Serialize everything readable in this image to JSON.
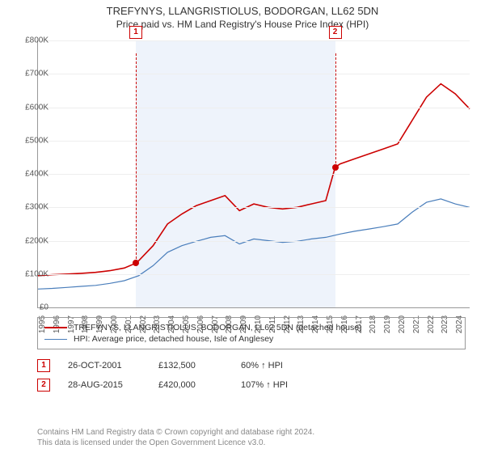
{
  "title": "TREFYNYS, LLANGRISTIOLUS, BODORGAN, LL62 5DN",
  "subtitle": "Price paid vs. HM Land Registry's House Price Index (HPI)",
  "chart": {
    "type": "line",
    "x_start_year": 1995,
    "x_end_year": 2025,
    "x_ticks": [
      1995,
      1996,
      1997,
      1998,
      1999,
      2000,
      2001,
      2002,
      2003,
      2004,
      2005,
      2006,
      2007,
      2008,
      2009,
      2010,
      2011,
      2012,
      2013,
      2014,
      2015,
      2016,
      2017,
      2018,
      2019,
      2020,
      2021,
      2022,
      2023,
      2024
    ],
    "ylim": [
      0,
      800000
    ],
    "y_ticks": [
      0,
      100000,
      200000,
      300000,
      400000,
      500000,
      600000,
      700000,
      800000
    ],
    "y_tick_labels": [
      "£0",
      "£100K",
      "£200K",
      "£300K",
      "£400K",
      "£500K",
      "£600K",
      "£700K",
      "£800K"
    ],
    "background_color": "#ffffff",
    "grid_color": "#eeeeee",
    "axis_color": "#999999",
    "shaded_band": {
      "from_year": 2001.8,
      "to_year": 2015.65,
      "color": "#eef3fb"
    },
    "title_fontsize": 13,
    "subtitle_fontsize": 12,
    "tick_fontsize": 10,
    "series": [
      {
        "name": "TREFYNYS, LLANGRISTIOLUS, BODORGAN, LL62 5DN (detached house)",
        "color": "#cc0000",
        "line_width": 1.6,
        "points": [
          [
            1995,
            95000
          ],
          [
            1996,
            98000
          ],
          [
            1997,
            100000
          ],
          [
            1998,
            102000
          ],
          [
            1999,
            105000
          ],
          [
            2000,
            110000
          ],
          [
            2001,
            118000
          ],
          [
            2001.8,
            132500
          ],
          [
            2002,
            140000
          ],
          [
            2003,
            185000
          ],
          [
            2004,
            250000
          ],
          [
            2005,
            280000
          ],
          [
            2006,
            305000
          ],
          [
            2007,
            320000
          ],
          [
            2008,
            335000
          ],
          [
            2009,
            290000
          ],
          [
            2010,
            310000
          ],
          [
            2011,
            300000
          ],
          [
            2012,
            295000
          ],
          [
            2013,
            300000
          ],
          [
            2014,
            310000
          ],
          [
            2015,
            320000
          ],
          [
            2015.65,
            420000
          ],
          [
            2016,
            430000
          ],
          [
            2017,
            445000
          ],
          [
            2018,
            460000
          ],
          [
            2019,
            475000
          ],
          [
            2020,
            490000
          ],
          [
            2021,
            560000
          ],
          [
            2022,
            630000
          ],
          [
            2023,
            670000
          ],
          [
            2024,
            640000
          ],
          [
            2025,
            595000
          ]
        ]
      },
      {
        "name": "HPI: Average price, detached house, Isle of Anglesey",
        "color": "#4a7ebb",
        "line_width": 1.2,
        "points": [
          [
            1995,
            55000
          ],
          [
            1996,
            57000
          ],
          [
            1997,
            60000
          ],
          [
            1998,
            63000
          ],
          [
            1999,
            66000
          ],
          [
            2000,
            72000
          ],
          [
            2001,
            80000
          ],
          [
            2002,
            95000
          ],
          [
            2003,
            125000
          ],
          [
            2004,
            165000
          ],
          [
            2005,
            185000
          ],
          [
            2006,
            198000
          ],
          [
            2007,
            210000
          ],
          [
            2008,
            215000
          ],
          [
            2009,
            190000
          ],
          [
            2010,
            205000
          ],
          [
            2011,
            200000
          ],
          [
            2012,
            195000
          ],
          [
            2013,
            198000
          ],
          [
            2014,
            205000
          ],
          [
            2015,
            210000
          ],
          [
            2016,
            220000
          ],
          [
            2017,
            228000
          ],
          [
            2018,
            235000
          ],
          [
            2019,
            242000
          ],
          [
            2020,
            250000
          ],
          [
            2021,
            285000
          ],
          [
            2022,
            315000
          ],
          [
            2023,
            325000
          ],
          [
            2024,
            310000
          ],
          [
            2025,
            300000
          ]
        ]
      }
    ],
    "markers": [
      {
        "label": "1",
        "year": 2001.8,
        "y_value": 132500,
        "box_top_offset": -18
      },
      {
        "label": "2",
        "year": 2015.65,
        "y_value": 420000,
        "box_top_offset": -18
      }
    ]
  },
  "legend": {
    "rows": [
      {
        "color": "#cc0000",
        "width": 2,
        "text": "TREFYNYS, LLANGRISTIOLUS, BODORGAN, LL62 5DN (detached house)"
      },
      {
        "color": "#4a7ebb",
        "width": 1.4,
        "text": "HPI: Average price, detached house, Isle of Anglesey"
      }
    ]
  },
  "events": [
    {
      "label": "1",
      "date": "26-OCT-2001",
      "price": "£132,500",
      "delta": "60% ↑ HPI"
    },
    {
      "label": "2",
      "date": "28-AUG-2015",
      "price": "£420,000",
      "delta": "107% ↑ HPI"
    }
  ],
  "footer_line1": "Contains HM Land Registry data © Crown copyright and database right 2024.",
  "footer_line2": "This data is licensed under the Open Government Licence v3.0."
}
